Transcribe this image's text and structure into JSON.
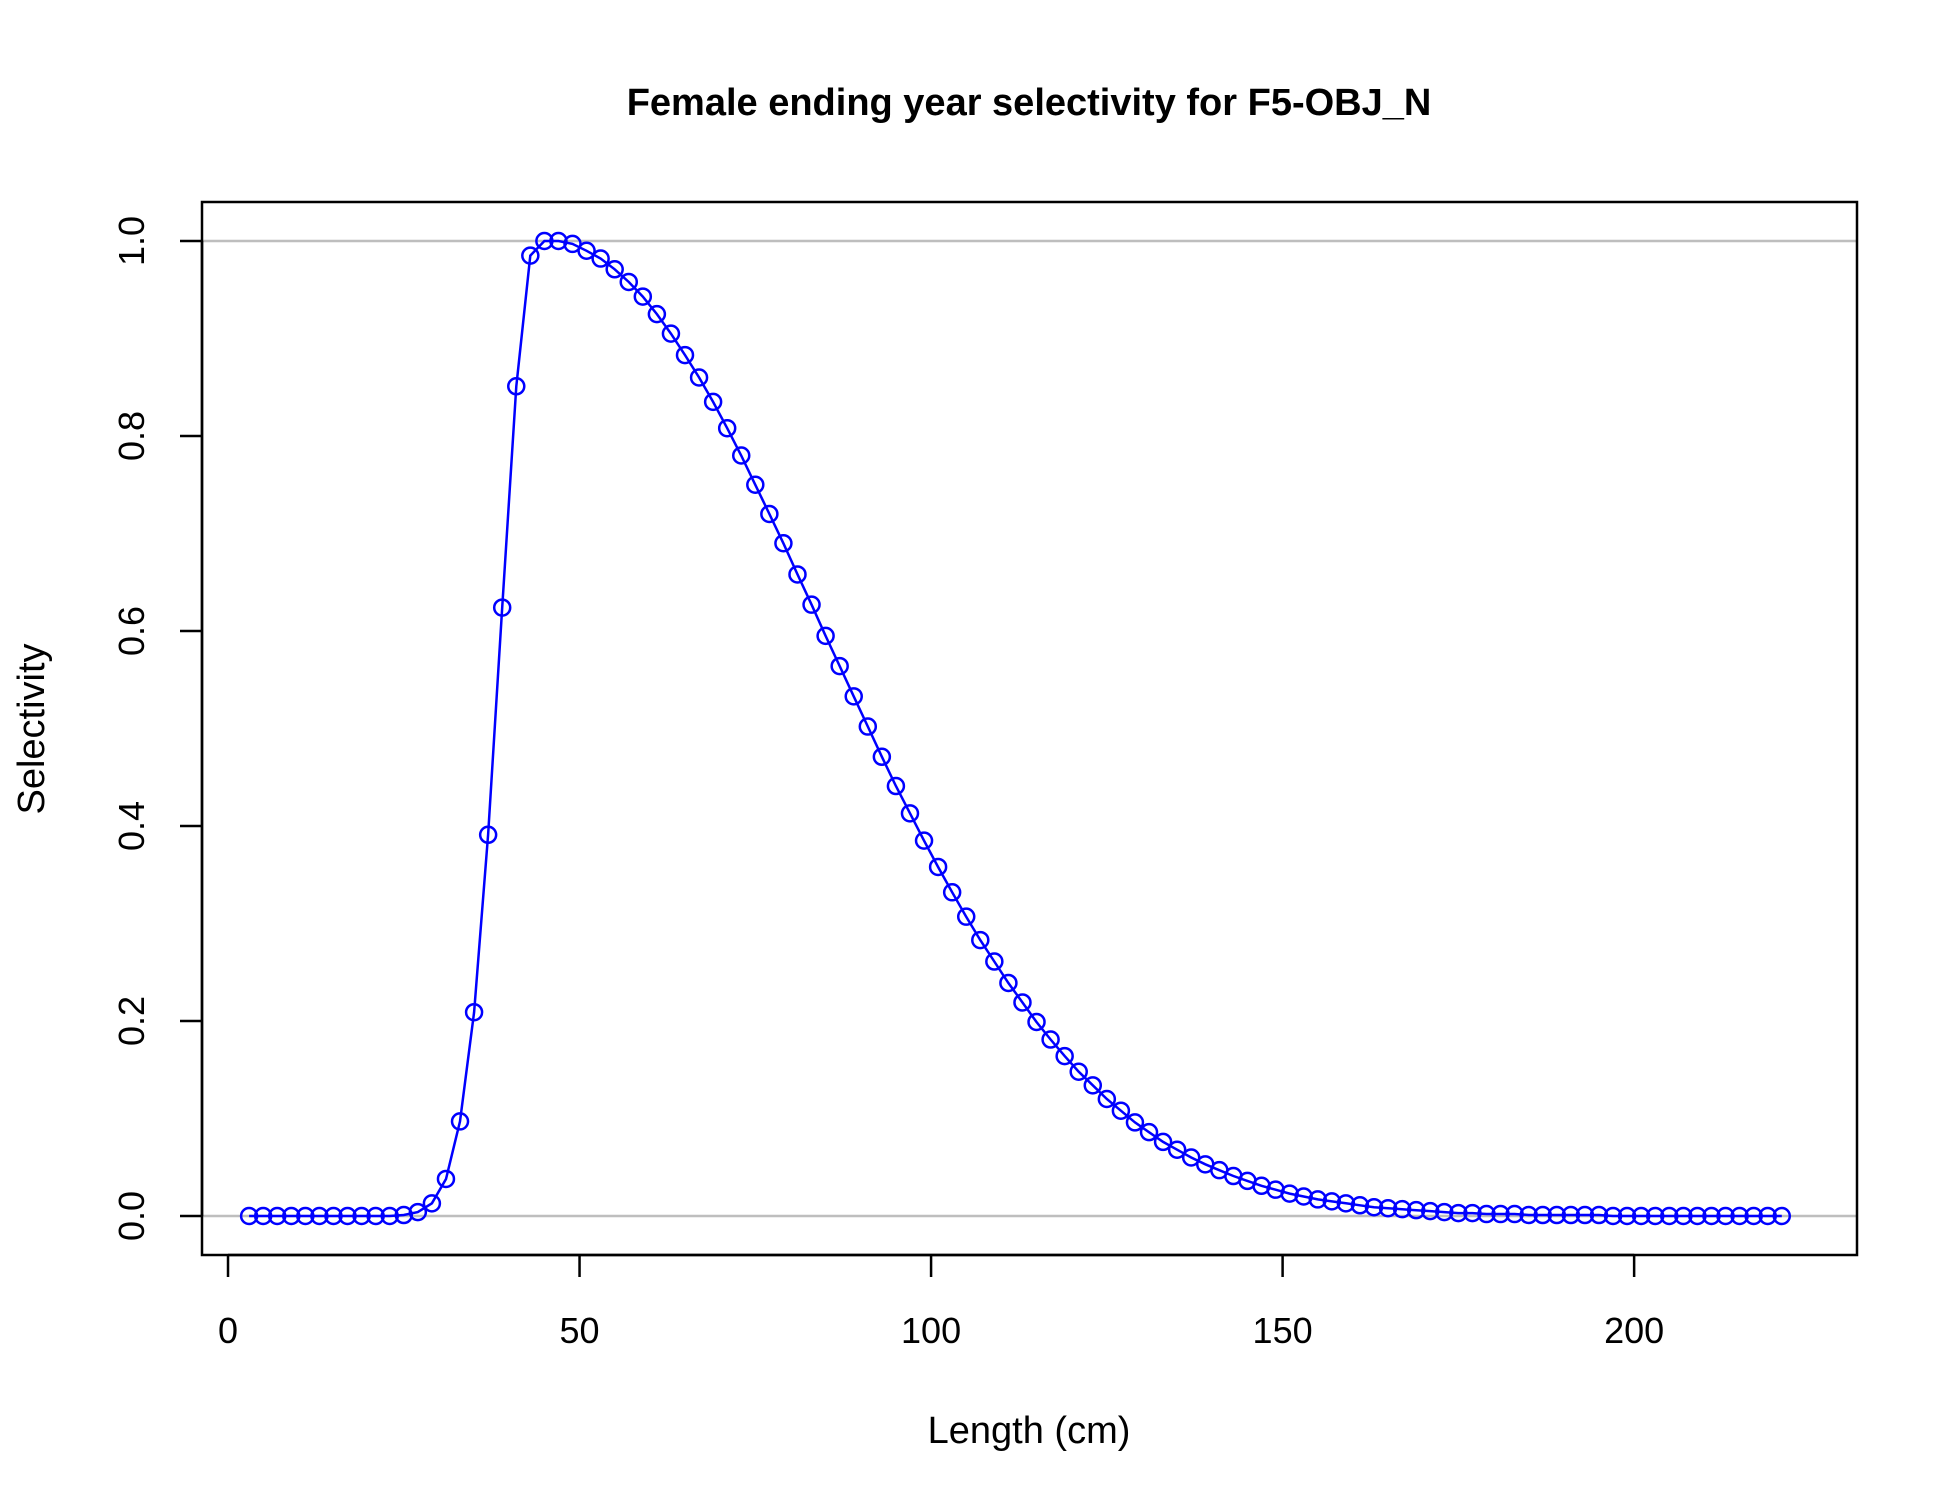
{
  "chart_data": {
    "type": "line",
    "title": "Female ending year selectivity for F5-OBJ_N",
    "xlabel": "Length (cm)",
    "ylabel": "Selectivity",
    "xlim": [
      -3.7,
      231.7
    ],
    "ylim": [
      -0.04,
      1.04
    ],
    "x_ticks": [
      "0",
      "50",
      "100",
      "150",
      "200"
    ],
    "y_ticks": [
      "0.0",
      "0.2",
      "0.4",
      "0.6",
      "0.8",
      "1.0"
    ],
    "reference_lines": [
      0,
      1
    ],
    "marker": "open-circle",
    "grid": false,
    "legend": "none",
    "colors": {
      "series": "#0000ff",
      "reference": "#bebebe",
      "axis": "#000000"
    },
    "series": [
      {
        "x": [
          3,
          5,
          7,
          9,
          11,
          13,
          15,
          17,
          19,
          21,
          23,
          25,
          27,
          29,
          31,
          33,
          35,
          37,
          39,
          41,
          43,
          45,
          47,
          49,
          51,
          53,
          55,
          57,
          59,
          61,
          63,
          65,
          67,
          69,
          71,
          73,
          75,
          77,
          79,
          81,
          83,
          85,
          87,
          89,
          91,
          93,
          95,
          97,
          99,
          101,
          103,
          105,
          107,
          109,
          111,
          113,
          115,
          117,
          119,
          121,
          123,
          125,
          127,
          129,
          131,
          133,
          135,
          137,
          139,
          141,
          143,
          145,
          147,
          149,
          151,
          153,
          155,
          157,
          159,
          161,
          163,
          165,
          167,
          169,
          171,
          173,
          175,
          177,
          179,
          181,
          183,
          185,
          187,
          189,
          191,
          193,
          195,
          197,
          199,
          201,
          203,
          205,
          207,
          209,
          211,
          213,
          215,
          217,
          219,
          221
        ],
        "y": [
          0,
          0,
          0,
          0,
          0,
          0,
          0,
          0,
          0,
          0,
          0,
          0.001,
          0.004,
          0.013,
          0.038,
          0.097,
          0.209,
          0.391,
          0.624,
          0.851,
          0.985,
          1,
          1,
          0.997,
          0.99,
          0.982,
          0.971,
          0.958,
          0.943,
          0.925,
          0.905,
          0.883,
          0.86,
          0.835,
          0.808,
          0.78,
          0.75,
          0.72,
          0.69,
          0.658,
          0.627,
          0.595,
          0.564,
          0.533,
          0.502,
          0.471,
          0.441,
          0.413,
          0.385,
          0.358,
          0.332,
          0.307,
          0.283,
          0.261,
          0.239,
          0.219,
          0.199,
          0.181,
          0.164,
          0.148,
          0.134,
          0.12,
          0.108,
          0.096,
          0.086,
          0.076,
          0.068,
          0.06,
          0.053,
          0.047,
          0.041,
          0.036,
          0.031,
          0.027,
          0.023,
          0.02,
          0.017,
          0.015,
          0.013,
          0.011,
          0.009,
          0.008,
          0.007,
          0.006,
          0.005,
          0.004,
          0.003,
          0.003,
          0.002,
          0.002,
          0.002,
          0.001,
          0.001,
          0.001,
          0.001,
          0.001,
          0.001,
          0,
          0,
          0,
          0,
          0,
          0,
          0,
          0,
          0,
          0,
          0,
          0,
          0
        ]
      }
    ]
  }
}
